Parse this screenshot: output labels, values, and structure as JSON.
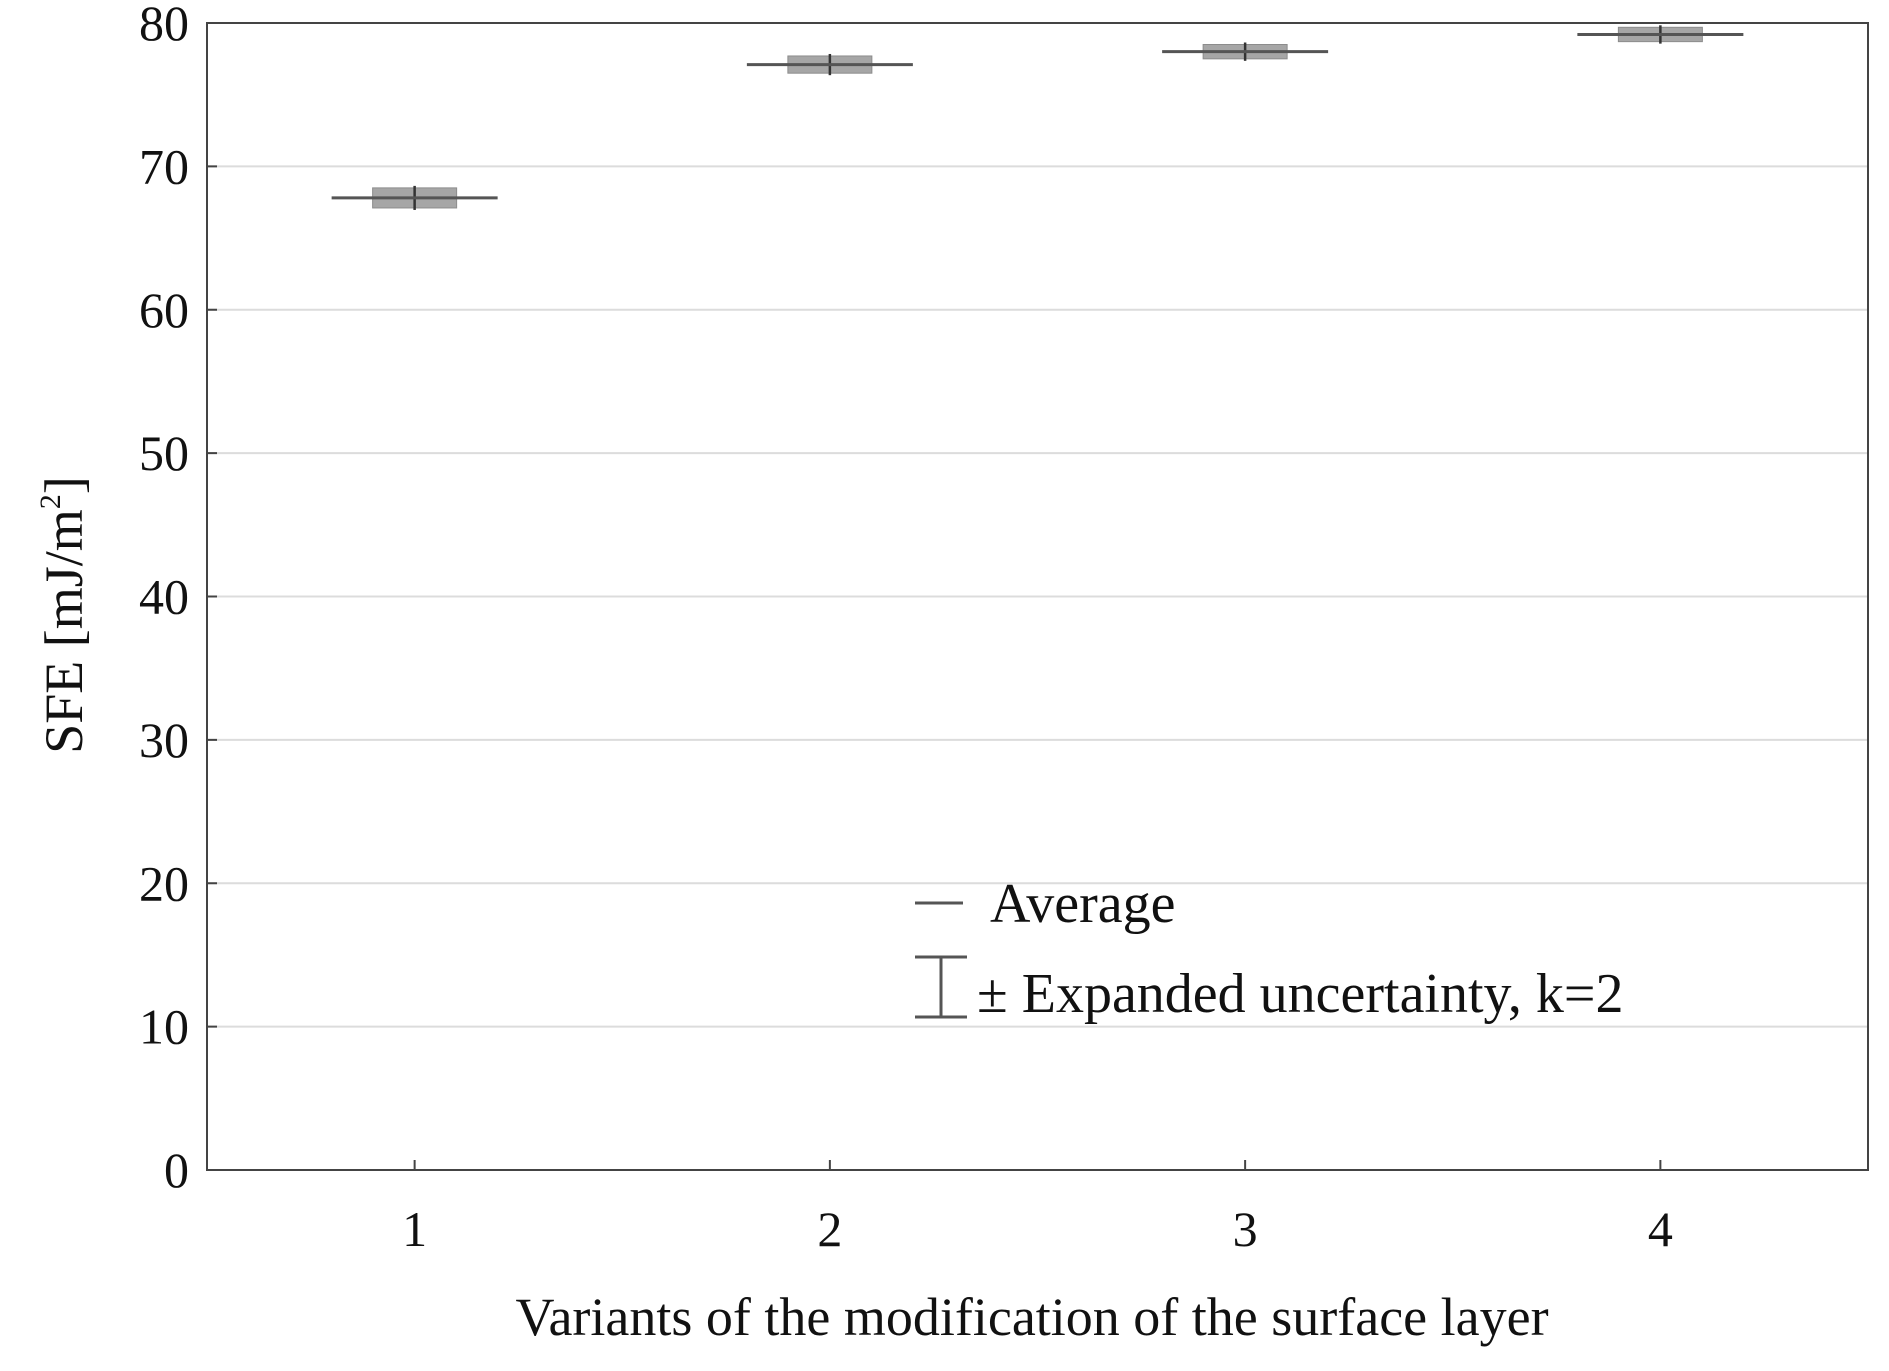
{
  "chart_data": {
    "type": "scatter",
    "title": "",
    "xlabel": "Variants of the modification of the surface layer",
    "ylabel": "SFE [mJ/m²]",
    "ylabel_parts": {
      "main": "SFE [mJ/m",
      "sup": "2",
      "close": "]"
    },
    "categories": [
      "1",
      "2",
      "3",
      "4"
    ],
    "ylim": [
      0,
      80
    ],
    "yticks": [
      "0",
      "10",
      "20",
      "30",
      "40",
      "50",
      "60",
      "70",
      "80"
    ],
    "grid": true,
    "legend_position": "bottom-right",
    "legend": {
      "average": "Average",
      "uncertainty": "± Expanded uncertainty, k=2"
    },
    "series": [
      {
        "values": [
          67.8,
          77.1,
          78.0,
          79.2
        ],
        "uncertainty": [
          0.7,
          0.6,
          0.5,
          0.5
        ]
      }
    ],
    "colors": {
      "grid": "#dcdcdc",
      "axis": "#444444",
      "box": "#a6a6a6",
      "mean": "#555555"
    }
  }
}
